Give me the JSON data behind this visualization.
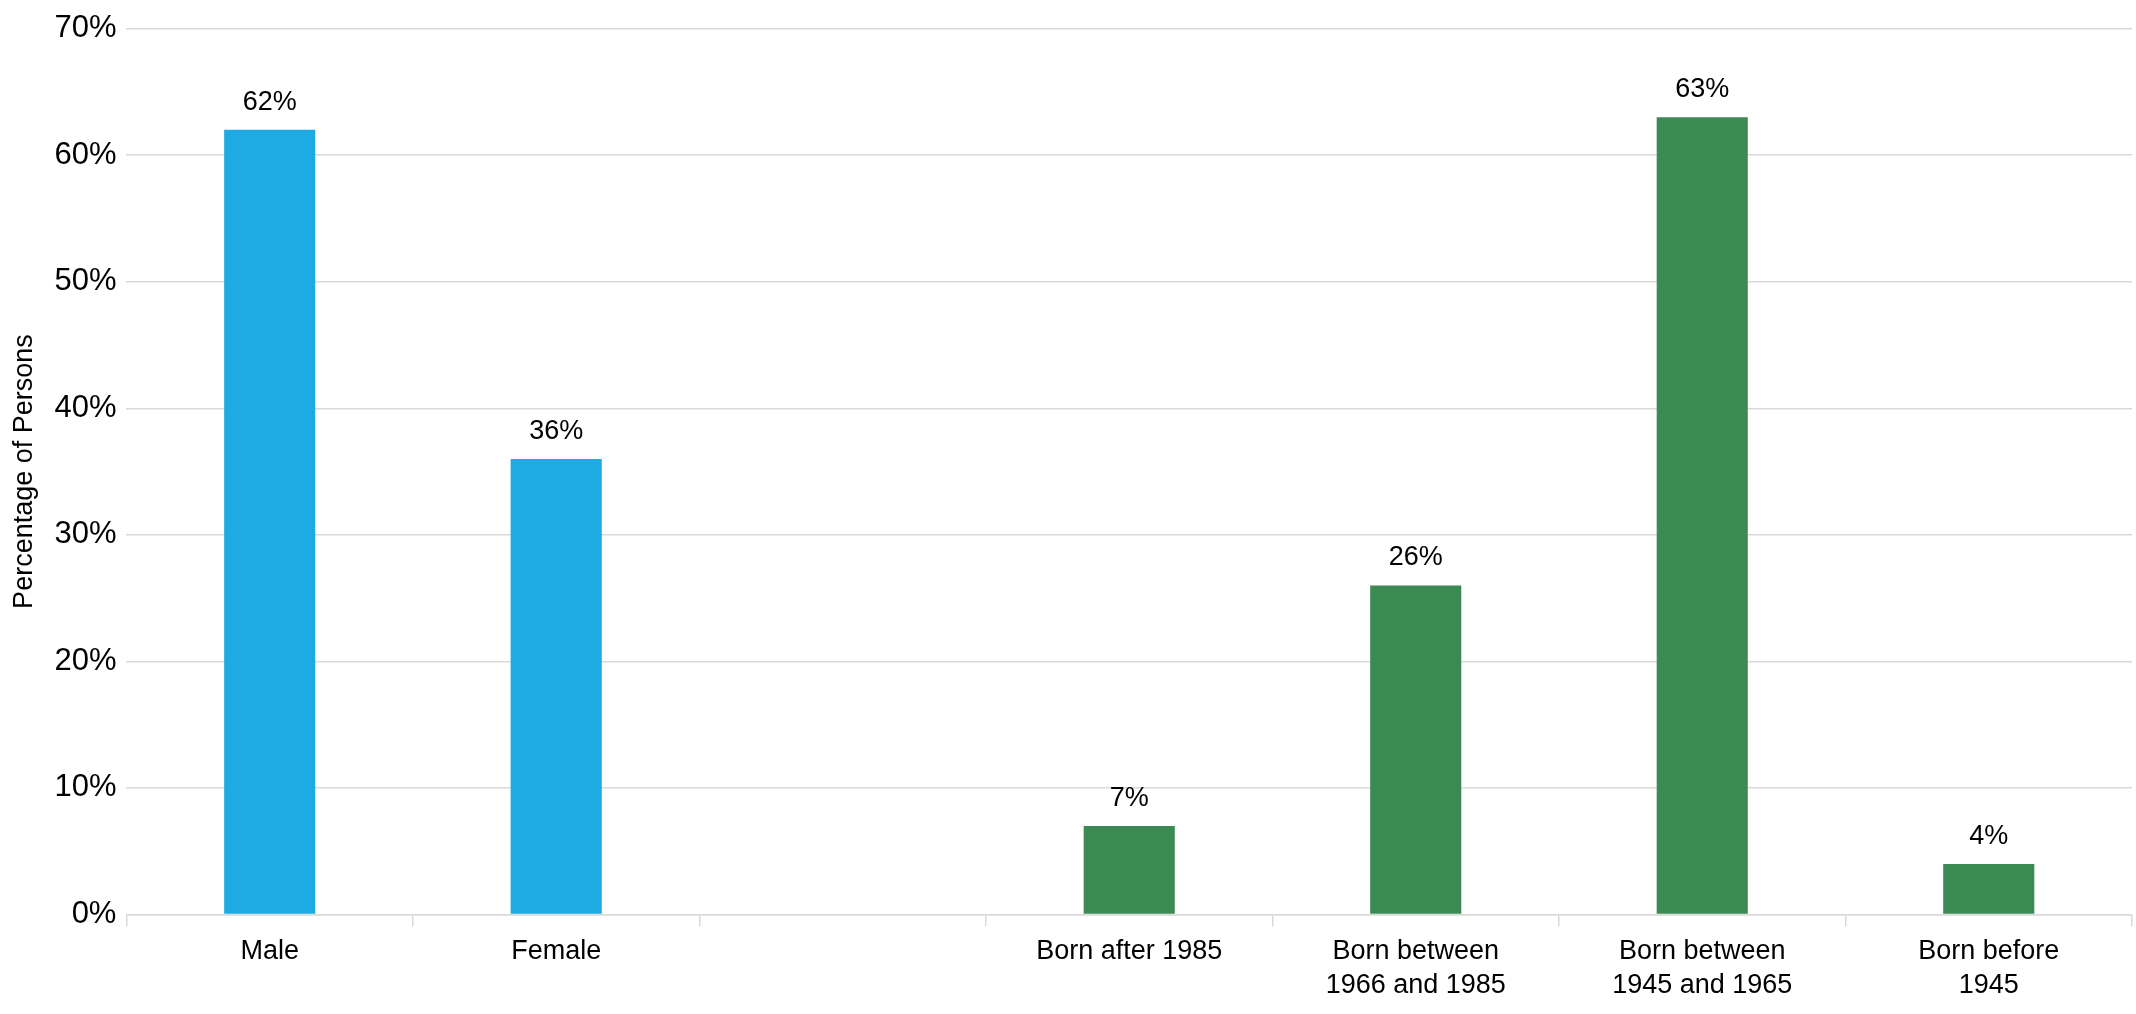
{
  "chart_data": {
    "type": "bar",
    "ylabel": "Percentage of Persons",
    "categories": [
      "Male",
      "Female",
      null,
      "Born after 1985",
      "Born between 1966 and 1985",
      "Born between 1945 and 1965",
      "Born before 1945"
    ],
    "values": [
      62,
      36,
      null,
      7,
      26,
      63,
      4
    ],
    "colors": [
      "#1eaae2",
      "#1eaae2",
      "#3c8a53",
      "#3c8a53",
      "#3c8a53",
      "#3c8a53",
      "#3c8a53"
    ],
    "value_labels": [
      "62%",
      "36%",
      null,
      "7%",
      "26%",
      "63%",
      "4%"
    ],
    "ylim": [
      0,
      70
    ],
    "yticks": [
      {
        "value": 0,
        "label": "0%"
      },
      {
        "value": 10,
        "label": "10%"
      },
      {
        "value": 20,
        "label": "20%"
      },
      {
        "value": 30,
        "label": "30%"
      },
      {
        "value": 40,
        "label": "40%"
      },
      {
        "value": 50,
        "label": "50%"
      },
      {
        "value": 60,
        "label": "60%"
      },
      {
        "value": 70,
        "label": "70%"
      }
    ],
    "grid": "y",
    "legend": false
  }
}
